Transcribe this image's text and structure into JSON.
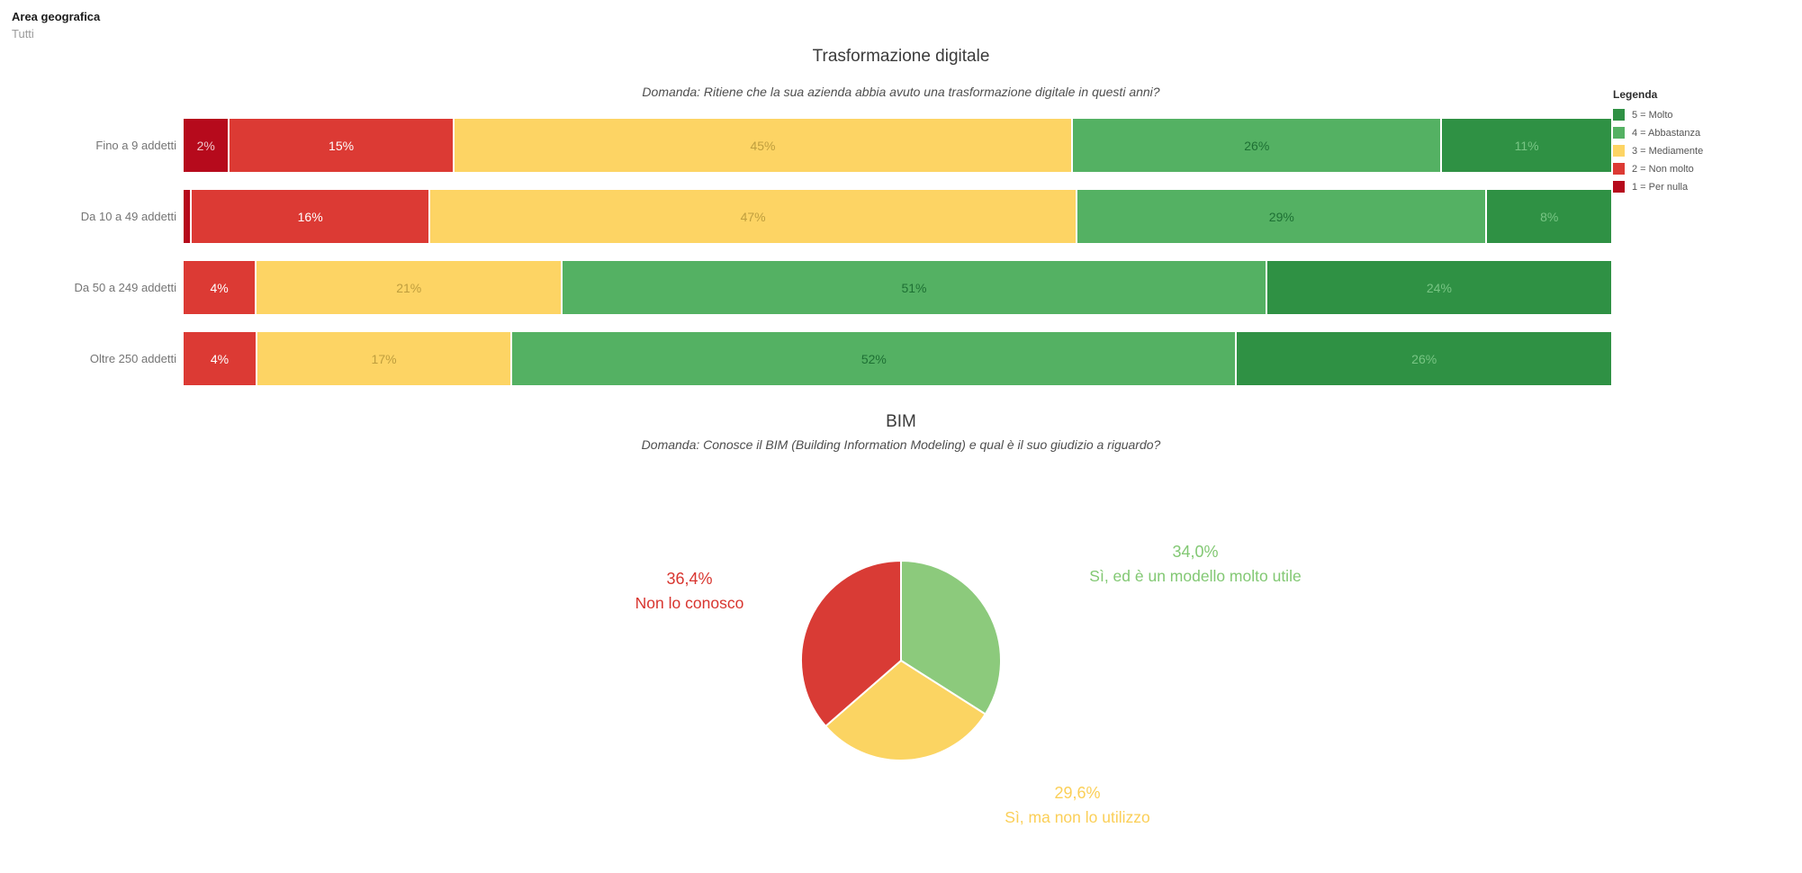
{
  "filter": {
    "label": "Area geografica",
    "value": "Tutti"
  },
  "chart_data": [
    {
      "id": "trasformazione-digitale",
      "type": "bar",
      "stacked": true,
      "orientation": "horizontal",
      "title": "Trasformazione digitale",
      "subtitle": "Domanda: Ritiene che la sua azienda abbia avuto una trasformazione digitale in questi anni?",
      "categories": [
        "Fino a 9 addetti",
        "Da 10 a 49 addetti",
        "Da 50 a 249 addetti",
        "Oltre 250 addetti"
      ],
      "series": [
        {
          "key": "s1",
          "name": "1 = Per nulla",
          "values": [
            2,
            0.5,
            0,
            0
          ],
          "labels": [
            "2%",
            "",
            "",
            ""
          ],
          "label_color": "#efc6cb"
        },
        {
          "key": "s2",
          "name": "2 = Non molto",
          "values": [
            15,
            16,
            4,
            4
          ],
          "labels": [
            "15%",
            "16%",
            "4%",
            "4%"
          ],
          "label_color": "#ffffff"
        },
        {
          "key": "s3",
          "name": "3 = Mediamente",
          "values": [
            45,
            47,
            21,
            17
          ],
          "labels": [
            "45%",
            "47%",
            "21%",
            "17%"
          ],
          "label_color": "#bf9e3e"
        },
        {
          "key": "s4",
          "name": "4 = Abbastanza",
          "values": [
            26,
            29,
            51,
            52
          ],
          "labels": [
            "26%",
            "29%",
            "51%",
            "52%"
          ],
          "label_color": "#1e7034"
        },
        {
          "key": "s5",
          "name": "5 = Molto",
          "values": [
            11,
            8,
            24,
            26
          ],
          "labels": [
            "11%",
            "8%",
            "24%",
            "26%"
          ],
          "label_color": "#78c584"
        }
      ],
      "colors": {
        "s1": "#b60a1c",
        "s2": "#dc3a34",
        "s3": "#fdd464",
        "s4": "#54b163",
        "s5": "#2f9144"
      },
      "legend": {
        "title": "Legenda",
        "position": "right",
        "items": [
          {
            "key": "s5",
            "label": "5 = Molto"
          },
          {
            "key": "s4",
            "label": "4 = Abbastanza"
          },
          {
            "key": "s3",
            "label": "3 = Mediamente"
          },
          {
            "key": "s2",
            "label": "2 = Non molto"
          },
          {
            "key": "s1",
            "label": "1 = Per nulla"
          }
        ]
      }
    },
    {
      "id": "bim",
      "type": "pie",
      "title": "BIM",
      "subtitle": "Domanda: Conosce il BIM (Building Information Modeling) e qual è il suo giudizio a riguardo?",
      "start_angle_deg": 0,
      "slices": [
        {
          "label": "Sì, ed è un modello molto utile",
          "value": 34.0,
          "value_label": "34,0%",
          "color": "#8cca7c",
          "text_color": "#82c873"
        },
        {
          "label": "Sì, ma non lo utilizzo",
          "value": 29.6,
          "value_label": "29,6%",
          "color": "#fbd462",
          "text_color": "#fbcf57"
        },
        {
          "label": "Non lo conosco",
          "value": 36.4,
          "value_label": "36,4%",
          "color": "#d93b35",
          "text_color": "#d8352f"
        }
      ]
    }
  ]
}
